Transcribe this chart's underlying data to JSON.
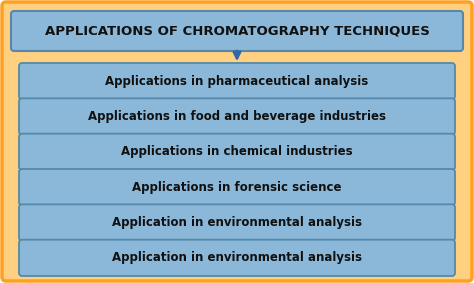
{
  "title": "APPLICATIONS OF CHROMATOGRAPHY TECHNIQUES",
  "items": [
    "Applications in pharmaceutical analysis",
    "Applications in food and beverage industries",
    "Applications in chemical industries",
    "Applications in forensic science",
    "Application in environmental analysis",
    "Application in environmental analysis"
  ],
  "bg_color": "#FFFFFF",
  "outer_bg_color": "#FFD080",
  "outer_border_color": "#FFA020",
  "title_box_color": "#8BB8D8",
  "title_box_border": "#5588AA",
  "item_box_color": "#8BB8D8",
  "item_box_border": "#5588AA",
  "title_font_color": "#111111",
  "item_font_color": "#111111",
  "title_fontsize": 9.5,
  "item_fontsize": 8.5,
  "arrow_color": "#3366AA"
}
